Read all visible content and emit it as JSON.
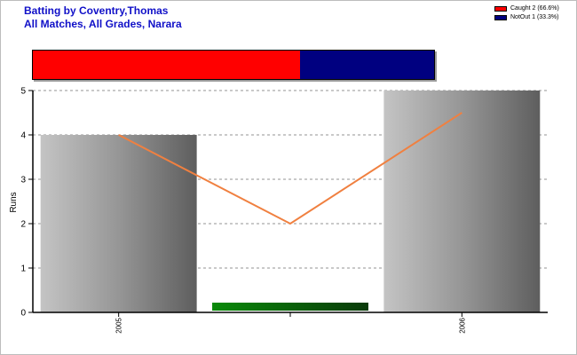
{
  "header": {
    "title_line1": "Batting by Coventry,Thomas",
    "title_line2": "All Matches, All Grades, Narara"
  },
  "legend": [
    {
      "label": "Caught 2 (66.6%)",
      "color": "#ff0000"
    },
    {
      "label": "NotOut 1 (33.3%)",
      "color": "#000080"
    }
  ],
  "dismissals": [
    {
      "name": "Caught",
      "count": 2,
      "share": 0.666,
      "color": "#ff0000"
    },
    {
      "name": "NotOut",
      "count": 1,
      "share": 0.333,
      "color": "#000080"
    }
  ],
  "chart_data": {
    "type": "bar",
    "categories": [
      "2005",
      "",
      "2006"
    ],
    "ylabel": "Runs",
    "ylim": [
      0,
      5
    ],
    "yticks": [
      0,
      1,
      2,
      3,
      4,
      5
    ],
    "grid": true,
    "series": [
      {
        "values": [
          4,
          0.2,
          5
        ],
        "colors": [
          "gray-gradient",
          "green-gradient",
          "gray-gradient"
        ]
      },
      {
        "type": "line",
        "color": "#f08040",
        "values": [
          4,
          2,
          4.5
        ]
      }
    ]
  }
}
